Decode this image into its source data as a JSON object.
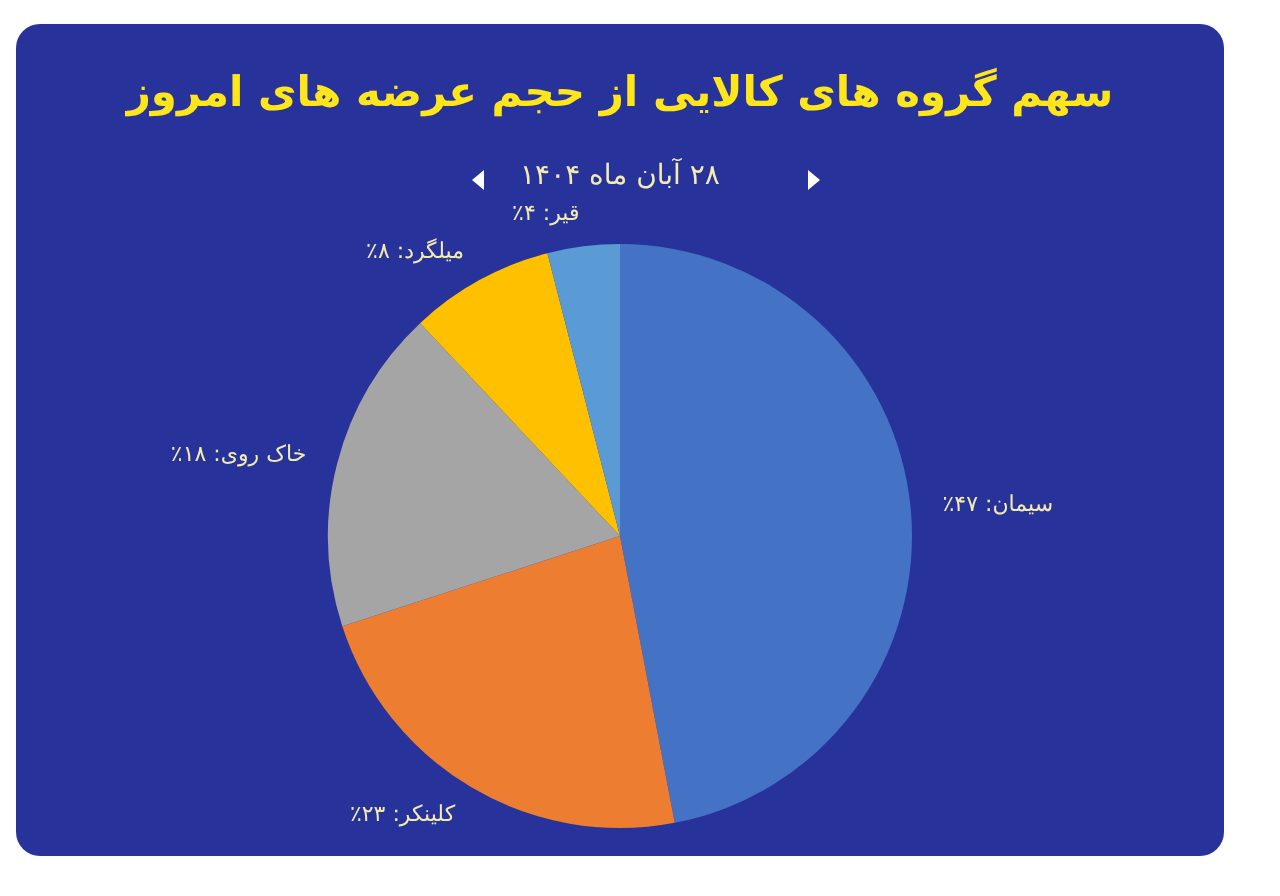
{
  "chart_data": {
    "type": "pie",
    "title": "سهم گروه های کالایی از حجم عرضه های امروز",
    "subtitle": "۲۸ آبان ماه ۱۴۰۴",
    "categories": [
      "سیمان",
      "کلینکر",
      "خاک روی",
      "میلگرد",
      "قیر"
    ],
    "values": [
      47,
      23,
      18,
      8,
      4
    ],
    "value_labels": [
      "۴۷٪",
      "۲۳٪",
      "۱۸٪",
      "۸٪",
      "۴٪"
    ],
    "colors": [
      "#4472c4",
      "#ed7d31",
      "#a5a5a5",
      "#ffc000",
      "#5b9bd5"
    ],
    "legend": false
  }
}
